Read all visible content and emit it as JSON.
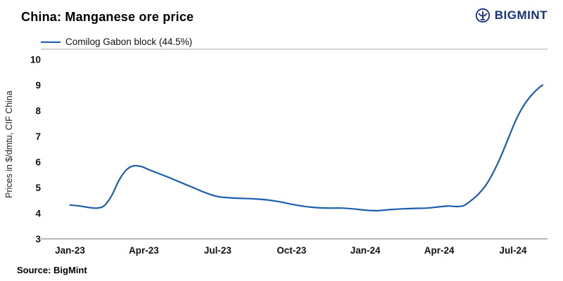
{
  "header": {
    "title": "China: Manganese ore price",
    "logo_text": "BIGMINT"
  },
  "legend": {
    "label": "Comilog Gabon block (44.5%)",
    "color": "#1b5eae"
  },
  "footer": {
    "source": "Source: BigMint"
  },
  "colors": {
    "brand": "#16307f",
    "line": "#1b5eae",
    "axis_top": "#a8a8a8",
    "axis_bottom": "#8c8c8c",
    "tick_text": "#111111"
  },
  "chart_data": {
    "type": "line",
    "title": "China: Manganese ore price",
    "ylabel": "Prices in $/dmtu, CIF China",
    "xlabel": "",
    "grid": false,
    "legend_position": "top-left",
    "x_unit": "months since Jan-23",
    "xlim": [
      -0.7,
      19.4
    ],
    "ylim": [
      3,
      10.4
    ],
    "yticks": [
      3,
      4,
      5,
      6,
      7,
      8,
      9,
      10
    ],
    "xticks": [
      0,
      3,
      6,
      9,
      12,
      15,
      18
    ],
    "xtick_labels": [
      "Jan-23",
      "Apr-23",
      "Jul-23",
      "Oct-23",
      "Jan-24",
      "Apr-24",
      "Jul-24"
    ],
    "series": [
      {
        "name": "Comilog Gabon block (44.5%)",
        "color": "#1b5eae",
        "x": [
          0,
          0.4,
          0.8,
          1.1,
          1.4,
          1.7,
          2.0,
          2.3,
          2.6,
          2.9,
          3.2,
          3.6,
          4.0,
          4.5,
          5.0,
          5.5,
          6.0,
          6.5,
          7.0,
          7.5,
          8.0,
          8.5,
          9.0,
          9.5,
          10.0,
          10.5,
          11.0,
          11.5,
          12.0,
          12.5,
          13.0,
          13.5,
          14.0,
          14.5,
          15.0,
          15.4,
          15.7,
          16.0,
          16.3,
          16.6,
          16.9,
          17.2,
          17.5,
          17.8,
          18.1,
          18.4,
          18.7,
          19.0,
          19.2
        ],
        "values": [
          4.32,
          4.28,
          4.22,
          4.2,
          4.3,
          4.7,
          5.3,
          5.7,
          5.85,
          5.82,
          5.7,
          5.55,
          5.4,
          5.2,
          5.0,
          4.8,
          4.65,
          4.6,
          4.58,
          4.56,
          4.52,
          4.45,
          4.35,
          4.27,
          4.22,
          4.2,
          4.2,
          4.17,
          4.12,
          4.1,
          4.14,
          4.17,
          4.19,
          4.2,
          4.25,
          4.28,
          4.26,
          4.3,
          4.5,
          4.75,
          5.1,
          5.6,
          6.2,
          6.9,
          7.6,
          8.15,
          8.55,
          8.85,
          9.0
        ]
      }
    ]
  }
}
